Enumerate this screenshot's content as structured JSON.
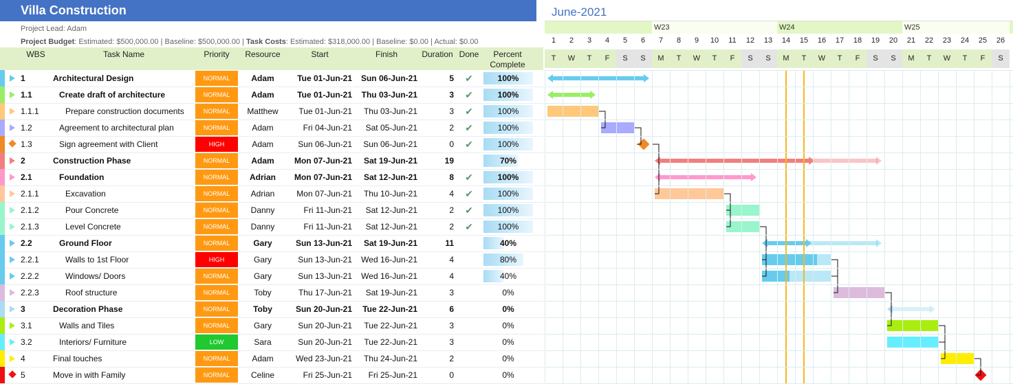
{
  "project": {
    "title": "Villa Construction",
    "lead_line": "Project Lead: Adam",
    "budget_label": "Project Budget",
    "budget_text": ": Estimated: $500,000.00 | Baseline: $500,000.00 | ",
    "costs_label": "Task Costs",
    "costs_text": ": Estimated: $318,000.00 | Baseline: $0.00 | Actual: $0.00"
  },
  "columns": [
    "WBS",
    "Task Name",
    "Priority",
    "Resource",
    "Start",
    "Finish",
    "Duration",
    "Done",
    "Percent Complete"
  ],
  "colors": {
    "normal": "#ff9912",
    "high": "#ff0000",
    "low": "#1fc92f",
    "header": "#4472c4",
    "today_line": "#f5b81e"
  },
  "gantt": {
    "month": "June-2021",
    "weeks": [
      {
        "label": "W23",
        "day": 7
      },
      {
        "label": "W24",
        "day": 14
      },
      {
        "label": "W25",
        "day": 21
      }
    ],
    "days": [
      {
        "n": "1",
        "d": "T"
      },
      {
        "n": "2",
        "d": "W"
      },
      {
        "n": "3",
        "d": "T"
      },
      {
        "n": "4",
        "d": "F"
      },
      {
        "n": "5",
        "d": "S"
      },
      {
        "n": "6",
        "d": "S"
      },
      {
        "n": "7",
        "d": "M"
      },
      {
        "n": "8",
        "d": "T"
      },
      {
        "n": "9",
        "d": "W"
      },
      {
        "n": "10",
        "d": "T"
      },
      {
        "n": "11",
        "d": "F"
      },
      {
        "n": "12",
        "d": "S"
      },
      {
        "n": "13",
        "d": "S"
      },
      {
        "n": "14",
        "d": "M"
      },
      {
        "n": "15",
        "d": "T"
      },
      {
        "n": "16",
        "d": "W"
      },
      {
        "n": "17",
        "d": "T"
      },
      {
        "n": "18",
        "d": "F"
      },
      {
        "n": "19",
        "d": "S"
      },
      {
        "n": "20",
        "d": "S"
      },
      {
        "n": "21",
        "d": "M"
      },
      {
        "n": "22",
        "d": "T"
      },
      {
        "n": "23",
        "d": "W"
      },
      {
        "n": "24",
        "d": "T"
      },
      {
        "n": "25",
        "d": "F"
      },
      {
        "n": "26",
        "d": "S"
      }
    ]
  },
  "tasks": [
    {
      "wbs": "1",
      "name": "Architectural Design",
      "priority": "NORMAL",
      "resource": "Adam",
      "start": "Tue 01-Jun-21",
      "finish": "Sun 06-Jun-21",
      "duration": "5",
      "done": true,
      "percent": "100%",
      "pct_fraction": 1.0,
      "level": 0,
      "summary": true,
      "color": "#66ccee",
      "marker": "tri"
    },
    {
      "wbs": "1.1",
      "name": "Create draft of architecture",
      "priority": "NORMAL",
      "resource": "Adam",
      "start": "Tue 01-Jun-21",
      "finish": "Thu 03-Jun-21",
      "duration": "3",
      "done": true,
      "percent": "100%",
      "pct_fraction": 1.0,
      "level": 1,
      "summary": true,
      "color": "#99ee66",
      "marker": "tri"
    },
    {
      "wbs": "1.1.1",
      "name": "Prepare construction documents",
      "priority": "NORMAL",
      "resource": "Matthew",
      "start": "Tue 01-Jun-21",
      "finish": "Thu 03-Jun-21",
      "duration": "3",
      "done": true,
      "percent": "100%",
      "pct_fraction": 1.0,
      "level": 2,
      "summary": false,
      "color": "#ffc87a",
      "marker": "tri"
    },
    {
      "wbs": "1.2",
      "name": "Agreement to architectural plan",
      "priority": "NORMAL",
      "resource": "Adam",
      "start": "Fri 04-Jun-21",
      "finish": "Sat 05-Jun-21",
      "duration": "2",
      "done": true,
      "percent": "100%",
      "pct_fraction": 1.0,
      "level": 1,
      "summary": false,
      "color": "#aaaaff",
      "marker": "tri"
    },
    {
      "wbs": "1.3",
      "name": "Sign agreement with Client",
      "priority": "HIGH",
      "resource": "Adam",
      "start": "Sun 06-Jun-21",
      "finish": "Sun 06-Jun-21",
      "duration": "0",
      "done": true,
      "percent": "100%",
      "pct_fraction": 1.0,
      "level": 1,
      "summary": false,
      "color": "#f08a24",
      "marker": "dia"
    },
    {
      "wbs": "2",
      "name": "Construction Phase",
      "priority": "NORMAL",
      "resource": "Adam",
      "start": "Mon 07-Jun-21",
      "finish": "Sat 19-Jun-21",
      "duration": "19",
      "done": false,
      "percent": "70%",
      "pct_fraction": 0.7,
      "level": 0,
      "summary": true,
      "color": "#f08080",
      "marker": "tri"
    },
    {
      "wbs": "2.1",
      "name": "Foundation",
      "priority": "NORMAL",
      "resource": "Adrian",
      "start": "Mon 07-Jun-21",
      "finish": "Sat 12-Jun-21",
      "duration": "8",
      "done": true,
      "percent": "100%",
      "pct_fraction": 1.0,
      "level": 1,
      "summary": true,
      "color": "#ff99cc",
      "marker": "tri"
    },
    {
      "wbs": "2.1.1",
      "name": "Excavation",
      "priority": "NORMAL",
      "resource": "Adrian",
      "start": "Mon 07-Jun-21",
      "finish": "Thu 10-Jun-21",
      "duration": "4",
      "done": true,
      "percent": "100%",
      "pct_fraction": 1.0,
      "level": 2,
      "summary": false,
      "color": "#ffc899",
      "marker": "tri"
    },
    {
      "wbs": "2.1.2",
      "name": "Pour Concrete",
      "priority": "NORMAL",
      "resource": "Danny",
      "start": "Fri 11-Jun-21",
      "finish": "Sat 12-Jun-21",
      "duration": "2",
      "done": true,
      "percent": "100%",
      "pct_fraction": 1.0,
      "level": 2,
      "summary": false,
      "color": "#99f5cc",
      "marker": "tri"
    },
    {
      "wbs": "2.1.3",
      "name": "Level Concrete",
      "priority": "NORMAL",
      "resource": "Danny",
      "start": "Fri 11-Jun-21",
      "finish": "Sat 12-Jun-21",
      "duration": "2",
      "done": true,
      "percent": "100%",
      "pct_fraction": 1.0,
      "level": 2,
      "summary": false,
      "color": "#99f5cc",
      "marker": "tri"
    },
    {
      "wbs": "2.2",
      "name": "Ground Floor",
      "priority": "NORMAL",
      "resource": "Gary",
      "start": "Sun 13-Jun-21",
      "finish": "Sat 19-Jun-21",
      "duration": "11",
      "done": false,
      "percent": "40%",
      "pct_fraction": 0.4,
      "level": 1,
      "summary": true,
      "color": "#66ccee",
      "marker": "tri"
    },
    {
      "wbs": "2.2.1",
      "name": "Walls to 1st Floor",
      "priority": "HIGH",
      "resource": "Gary",
      "start": "Sun 13-Jun-21",
      "finish": "Wed 16-Jun-21",
      "duration": "4",
      "done": false,
      "percent": "80%",
      "pct_fraction": 0.8,
      "level": 2,
      "summary": false,
      "color": "#66ccee",
      "marker": "tri"
    },
    {
      "wbs": "2.2.2",
      "name": "Windows/ Doors",
      "priority": "NORMAL",
      "resource": "Gary",
      "start": "Sun 13-Jun-21",
      "finish": "Wed 16-Jun-21",
      "duration": "4",
      "done": false,
      "percent": "40%",
      "pct_fraction": 0.4,
      "level": 2,
      "summary": false,
      "color": "#66ccee",
      "marker": "tri"
    },
    {
      "wbs": "2.2.3",
      "name": "Roof structure",
      "priority": "NORMAL",
      "resource": "Toby",
      "start": "Thu 17-Jun-21",
      "finish": "Sat 19-Jun-21",
      "duration": "3",
      "done": false,
      "percent": "0%",
      "pct_fraction": 0.0,
      "level": 2,
      "summary": false,
      "color": "#ddbbdd",
      "marker": "tri"
    },
    {
      "wbs": "3",
      "name": "Decoration Phase",
      "priority": "NORMAL",
      "resource": "Toby",
      "start": "Sun 20-Jun-21",
      "finish": "Tue 22-Jun-21",
      "duration": "6",
      "done": false,
      "percent": "0%",
      "pct_fraction": 0.0,
      "level": 0,
      "summary": true,
      "color": "#aaddf5",
      "marker": "tri"
    },
    {
      "wbs": "3.1",
      "name": "Walls and Tiles",
      "priority": "NORMAL",
      "resource": "Gary",
      "start": "Sun 20-Jun-21",
      "finish": "Tue 22-Jun-21",
      "duration": "3",
      "done": false,
      "percent": "0%",
      "pct_fraction": 0.0,
      "level": 1,
      "summary": false,
      "color": "#aaee11",
      "marker": "tri"
    },
    {
      "wbs": "3.2",
      "name": "Interiors/ Furniture",
      "priority": "LOW",
      "resource": "Sara",
      "start": "Sun 20-Jun-21",
      "finish": "Tue 22-Jun-21",
      "duration": "3",
      "done": false,
      "percent": "0%",
      "pct_fraction": 0.0,
      "level": 1,
      "summary": false,
      "color": "#66eeff",
      "marker": "tri"
    },
    {
      "wbs": "4",
      "name": "Final touches",
      "priority": "NORMAL",
      "resource": "Adam",
      "start": "Wed 23-Jun-21",
      "finish": "Thu 24-Jun-21",
      "duration": "2",
      "done": false,
      "percent": "0%",
      "pct_fraction": 0.0,
      "level": 0,
      "summary": false,
      "color": "#ffee00",
      "marker": "tri"
    },
    {
      "wbs": "5",
      "name": "Move in with Family",
      "priority": "NORMAL",
      "resource": "Celine",
      "start": "Fri 25-Jun-21",
      "finish": "Fri 25-Jun-21",
      "duration": "0",
      "done": false,
      "percent": "0%",
      "pct_fraction": 0.0,
      "level": 0,
      "summary": false,
      "color": "#ee1111",
      "marker": "dia"
    }
  ]
}
